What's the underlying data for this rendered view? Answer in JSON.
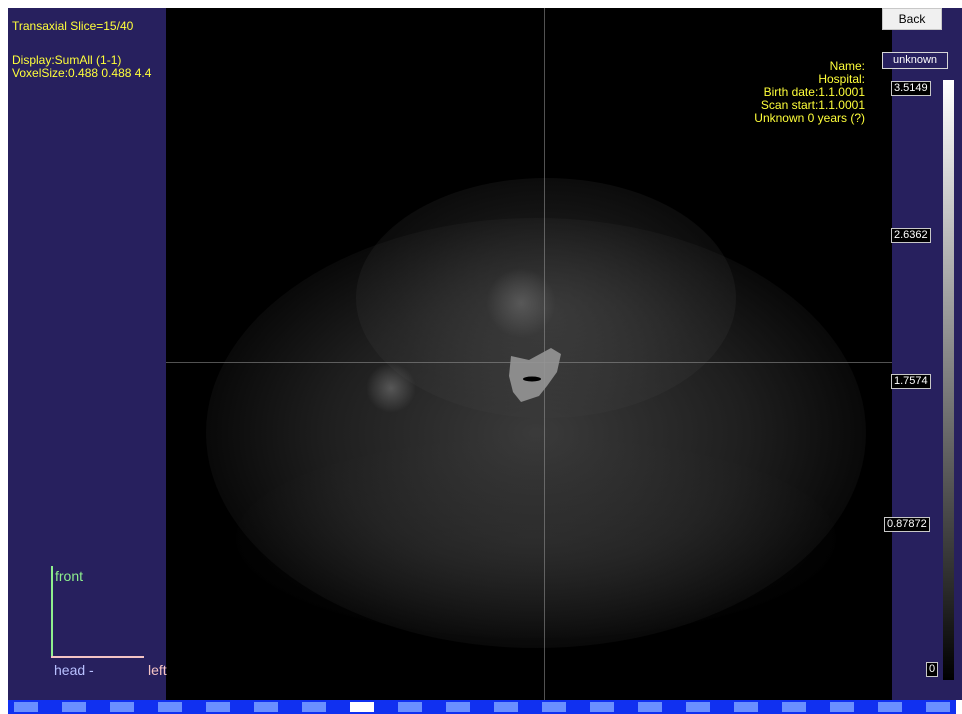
{
  "slice_label": "Transaxial Slice=15/40",
  "display_label": "Display:SumAll (1-1)",
  "voxel_label": "VoxelSize:0.488  0.488  4.4",
  "patient": {
    "name_label": "Name:",
    "hospital_label": "Hospital:",
    "birth_date": "Birth date:1.1.0001",
    "scan_start": "Scan start:1.1.0001",
    "summary": "Unknown 0 years (?)"
  },
  "back_label": "Back",
  "name_value": "unknown",
  "colorbar_ticks": [
    "3.5149",
    "2.6362",
    "1.7574",
    "0.87872",
    "0"
  ],
  "orientation": {
    "front": "front",
    "head": "head -",
    "left": "left"
  },
  "slices": {
    "total": 40,
    "current": 15
  },
  "colors": {
    "overlay_text": "#ffff3a",
    "panel": "#27205e",
    "strip": "#1030f0"
  }
}
